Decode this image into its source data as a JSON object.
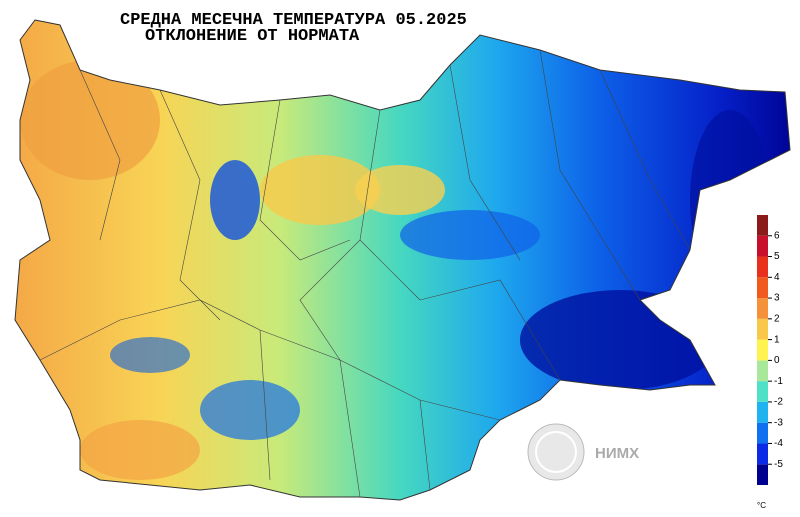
{
  "title": "СРЕДНА МЕСЕЧНА ТЕМПЕРАТУРА  05.2025",
  "subtitle": "ОТКЛОНЕНИЕ ОТ НОРМАТА",
  "colorbar": {
    "range": [
      -6,
      7
    ],
    "ticks": [
      6,
      5,
      4,
      3,
      2,
      1,
      0,
      -1,
      -2,
      -3,
      -4,
      -5
    ],
    "colors": [
      "#000090",
      "#0a2ae6",
      "#1070f0",
      "#1fb4f0",
      "#4fe0c8",
      "#a8e89a",
      "#fff44f",
      "#f9c74a",
      "#f5913a",
      "#f05a1e",
      "#e8301c",
      "#c8102e",
      "#8b1a1a"
    ],
    "unit": "°C"
  },
  "logo": "НИМХ"
}
